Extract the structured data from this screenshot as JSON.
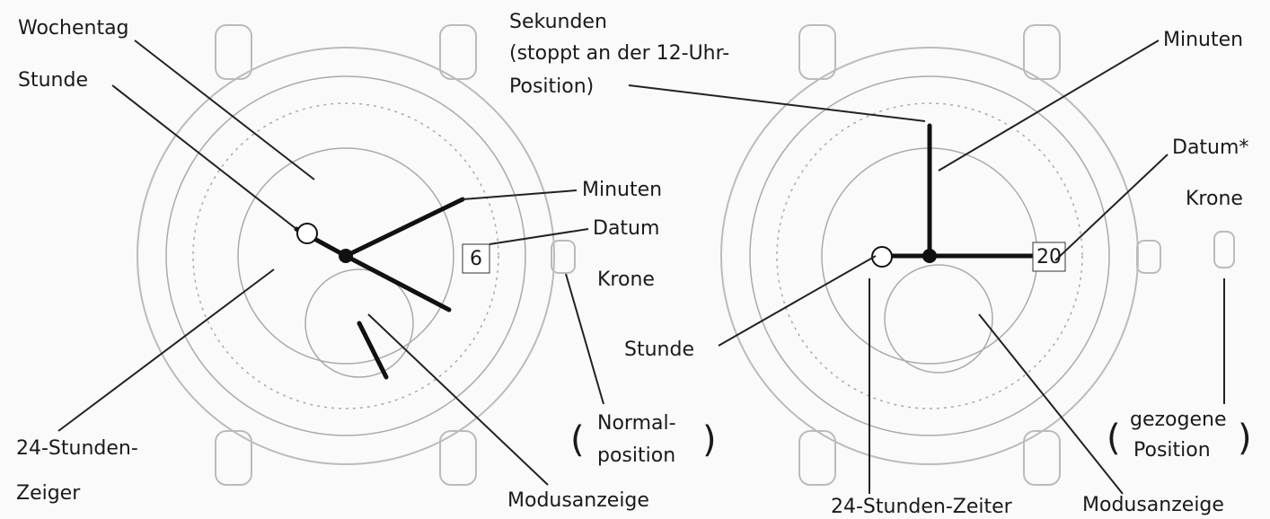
{
  "left_watch": {
    "weekday": "Wochentag",
    "hour": "Stunde",
    "minutes": "Minuten",
    "date": "Datum",
    "date_window": "6",
    "crown": "Krone",
    "crown_position": [
      "Normal-",
      "position"
    ],
    "open_paren": "(",
    "close_paren": ")",
    "hour_24_hand": [
      "24-Stunden-",
      "Zeiger"
    ],
    "mode_indicator": "Modusanzeige"
  },
  "right_watch": {
    "seconds": [
      "Sekunden",
      "(stoppt an der 12-Uhr-",
      "Position)"
    ],
    "minutes": "Minuten",
    "date": "Datum*",
    "crown": "Krone",
    "hour": "Stunde",
    "date_window": "20",
    "crown_position": [
      "gezogene",
      "Position"
    ],
    "open_paren": "(",
    "close_paren": ")",
    "hour_24_hand": "24-Stunden-Zeiter",
    "mode_indicator": "Modusanzeige"
  }
}
